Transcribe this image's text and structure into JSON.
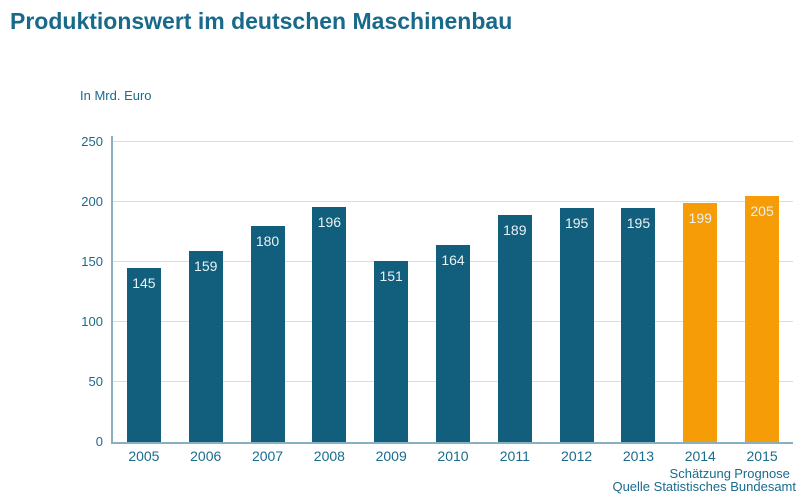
{
  "title": "Produktionswert im deutschen Maschinenbau",
  "unit_label": "In Mrd. Euro",
  "source": "Quelle Statistisches Bundesamt",
  "colors": {
    "bar": "#115E7D",
    "bar_forecast": "#F59C07",
    "title_text": "#19698B",
    "axis_text": "#1A6B8D",
    "gridline": "#DCDCDC",
    "axis_line": "#87B1C0",
    "value_label": "#E9F2F5"
  },
  "chart_data": {
    "type": "bar",
    "title": "Produktionswert im deutschen Maschinenbau",
    "ylabel": "In Mrd. Euro",
    "categories": [
      "2005",
      "2006",
      "2007",
      "2008",
      "2009",
      "2010",
      "2011",
      "2012",
      "2013",
      "2014",
      "2015"
    ],
    "values": [
      145,
      159,
      180,
      196,
      151,
      164,
      189,
      195,
      195,
      199,
      205
    ],
    "category_sublabels": [
      "",
      "",
      "",
      "",
      "",
      "",
      "",
      "",
      "",
      "Schätzung",
      "Prognose"
    ],
    "forecast_indices": [
      9,
      10
    ],
    "yticks": [
      0,
      50,
      100,
      150,
      200,
      250
    ],
    "ylim": [
      0,
      250
    ],
    "grid": true,
    "legend": false,
    "source": "Quelle Statistisches Bundesamt"
  }
}
